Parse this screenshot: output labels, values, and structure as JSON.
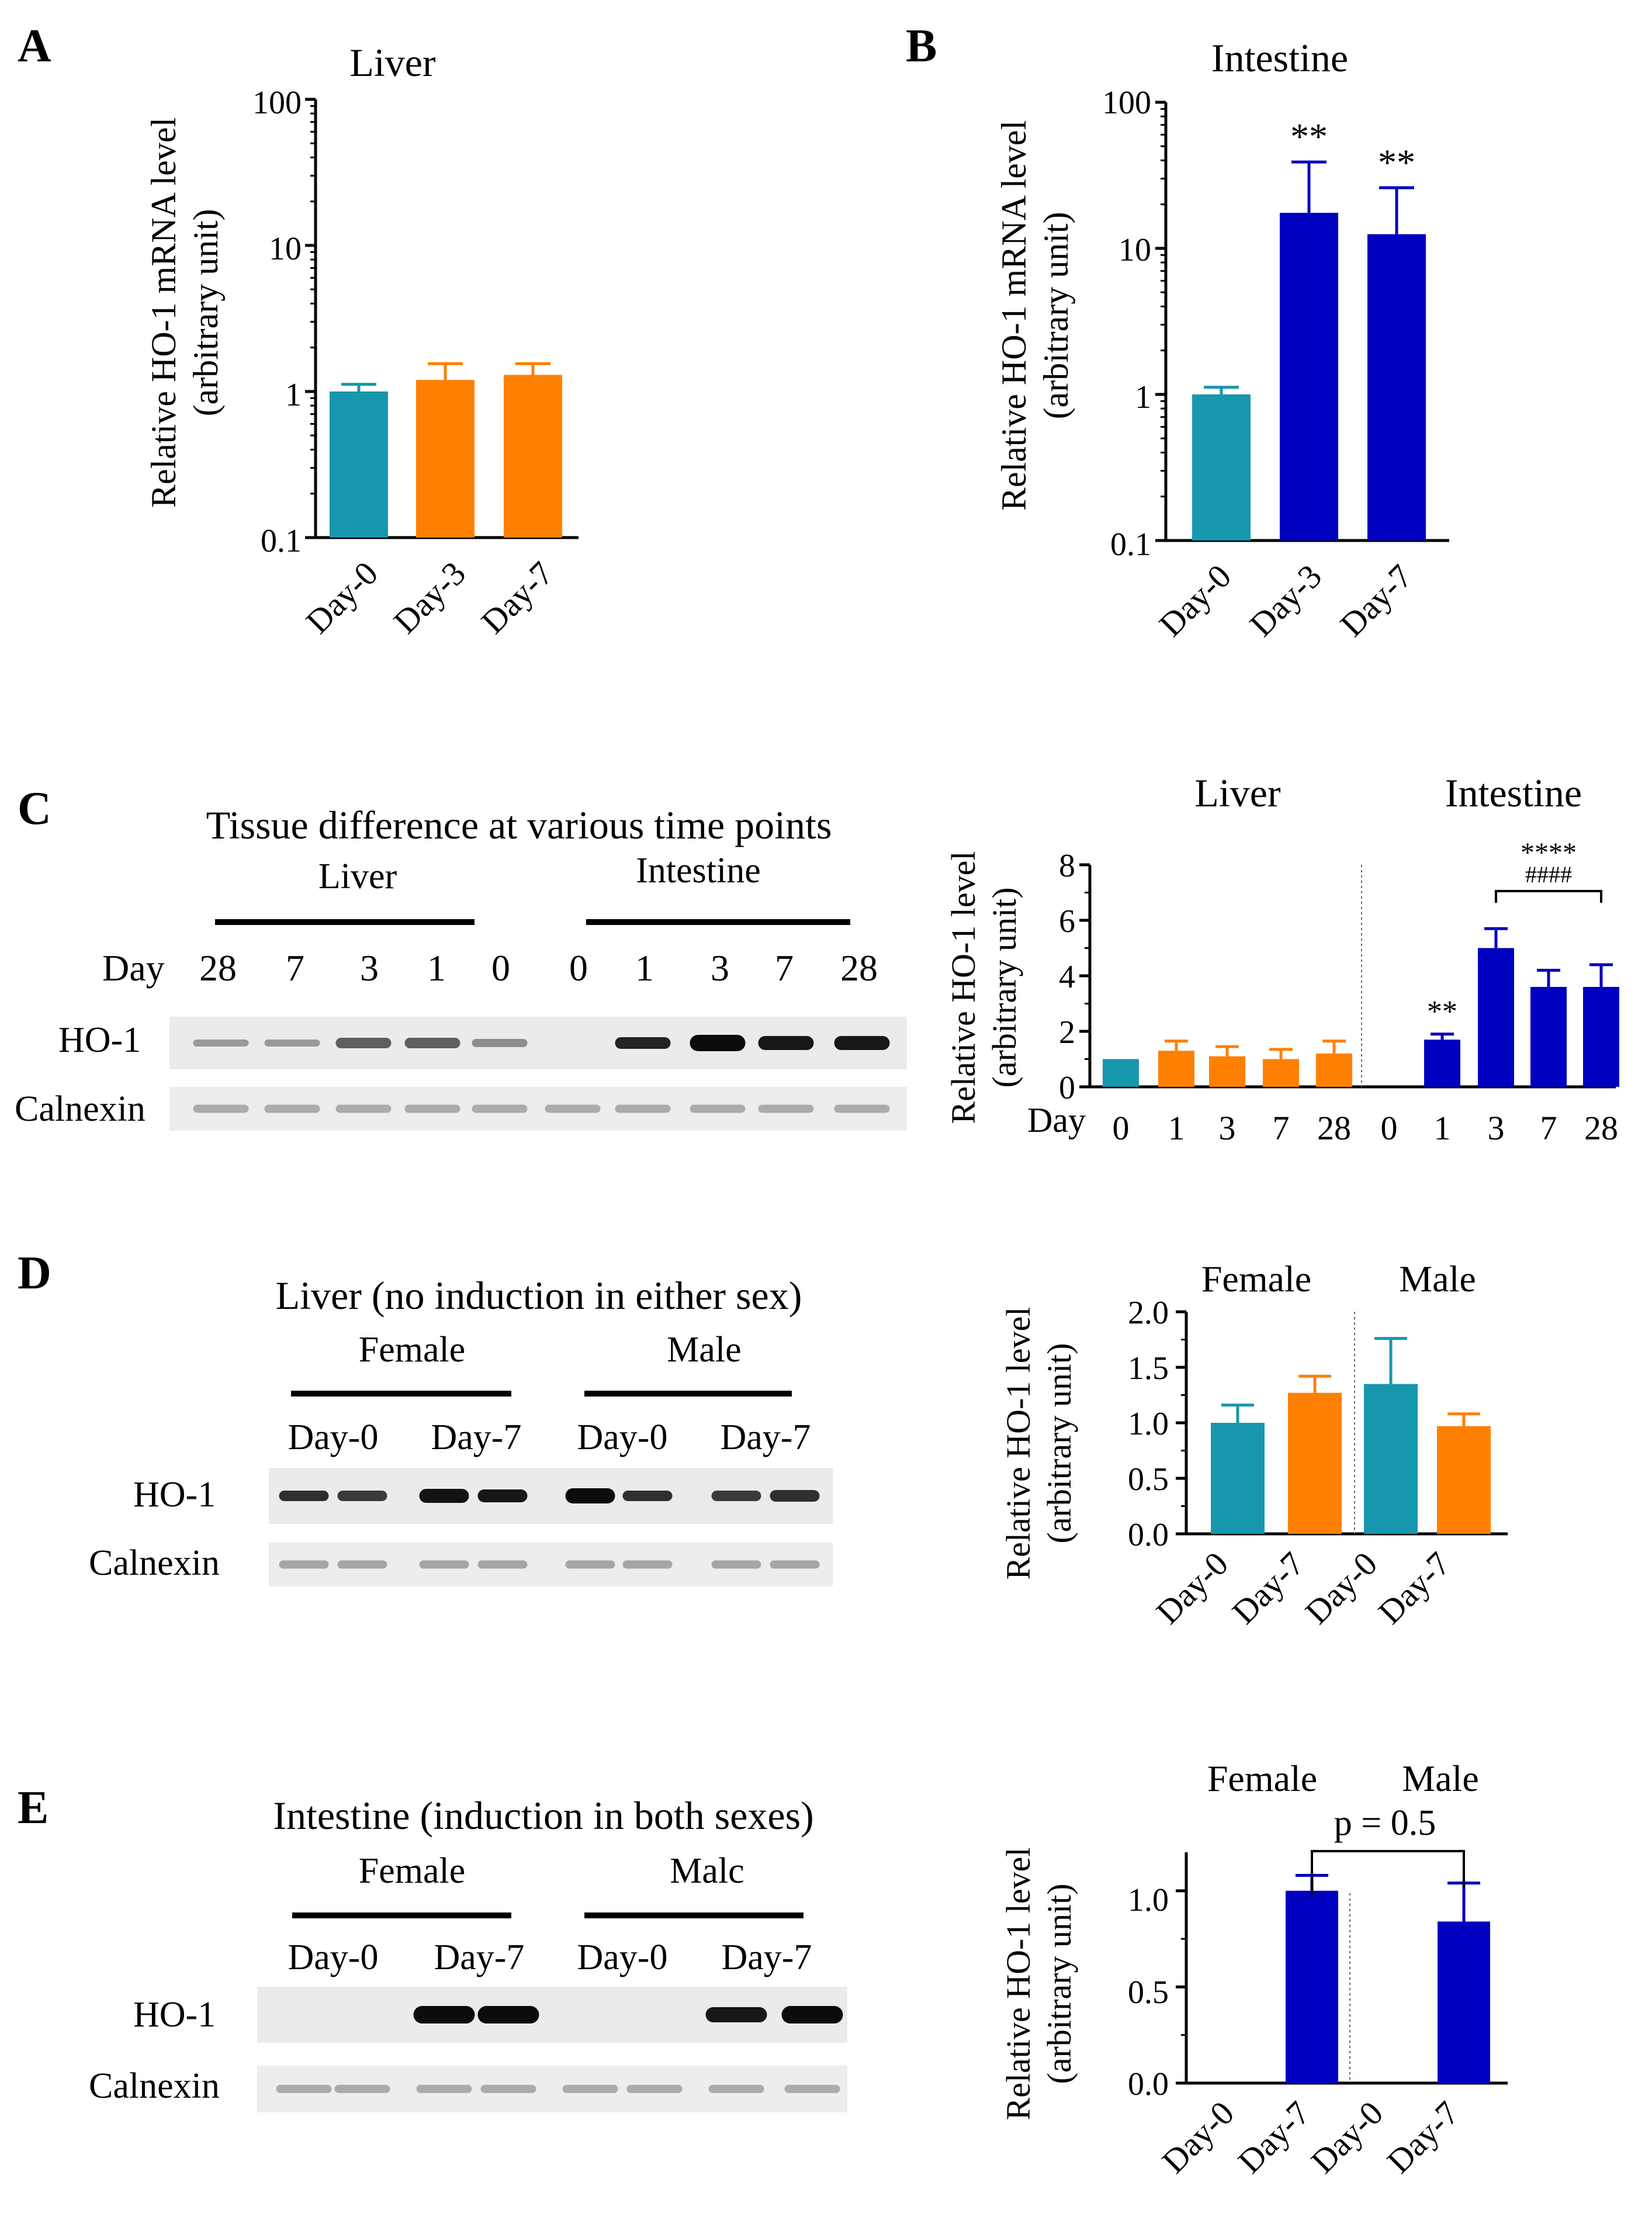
{
  "colors": {
    "teal": "#1797ad",
    "orange": "#ff8000",
    "blue": "#0000c0",
    "axis": "#000000"
  },
  "panels": {
    "A": {
      "letter": "A",
      "chart_data": {
        "type": "bar",
        "title": "Liver",
        "ylabel": "Relative HO-1 mRNA level (arbitrary unit)",
        "ylabel_lines": [
          "Relative HO-1 mRNA level",
          "(arbitrary unit)"
        ],
        "yscale": "log",
        "ylim": [
          0.1,
          100
        ],
        "yticks": [
          0.1,
          1,
          10,
          100
        ],
        "ytick_labels": [
          "0.1",
          "1",
          "10",
          "100"
        ],
        "categories": [
          "Day-0",
          "Day-3",
          "Day-7"
        ],
        "values": [
          1.0,
          1.2,
          1.3
        ],
        "error_upper": [
          1.12,
          1.55,
          1.55
        ],
        "bar_colors": [
          "teal",
          "orange",
          "orange"
        ],
        "annotations": [
          "",
          "",
          ""
        ]
      }
    },
    "B": {
      "letter": "B",
      "chart_data": {
        "type": "bar",
        "title": "Intestine",
        "ylabel": "Relative HO-1 mRNA level (arbitrary unit)",
        "ylabel_lines": [
          "Relative HO-1 mRNA level",
          "(arbitrary unit)"
        ],
        "yscale": "log",
        "ylim": [
          0.1,
          100
        ],
        "yticks": [
          0.1,
          1,
          10,
          100
        ],
        "ytick_labels": [
          "0.1",
          "1",
          "10",
          "100"
        ],
        "categories": [
          "Day-0",
          "Day-3",
          "Day-7"
        ],
        "values": [
          1.0,
          17.5,
          12.5
        ],
        "error_upper": [
          1.12,
          39,
          26
        ],
        "bar_colors": [
          "teal",
          "blue",
          "blue"
        ],
        "annotations": [
          "",
          "**",
          "**"
        ]
      }
    },
    "C": {
      "letter": "C",
      "blot": {
        "title": "Tissue difference at various time points",
        "groups": [
          "Liver",
          "Intestine"
        ],
        "day_label": "Day",
        "lanes": [
          "28",
          "7",
          "3",
          "1",
          "0",
          "0",
          "1",
          "3",
          "7",
          "28"
        ],
        "rows": [
          "HO-1",
          "Calnexin"
        ]
      },
      "chart_data": {
        "type": "bar",
        "group_labels": [
          "Liver",
          "Intestine"
        ],
        "ylabel": "Relative HO-1 level (arbitrary unit)",
        "ylabel_lines": [
          "Relative HO-1 level",
          "(arbitrary unit)"
        ],
        "ylim": [
          0,
          8
        ],
        "yticks": [
          0,
          2,
          4,
          6,
          8
        ],
        "ytick_labels": [
          "0",
          "2",
          "4",
          "6",
          "8"
        ],
        "x_prefix": "Day",
        "categories": [
          "0",
          "1",
          "3",
          "7",
          "28",
          "0",
          "1",
          "3",
          "7",
          "28"
        ],
        "values": [
          1.0,
          1.3,
          1.1,
          1.0,
          1.2,
          0,
          1.7,
          5.0,
          3.6,
          3.6
        ],
        "error_upper": [
          1.0,
          1.65,
          1.45,
          1.35,
          1.65,
          0,
          1.9,
          5.7,
          4.2,
          4.4
        ],
        "bar_colors": [
          "teal",
          "orange",
          "orange",
          "orange",
          "orange",
          "blue",
          "blue",
          "blue",
          "blue",
          "blue"
        ],
        "annotations": [
          "",
          "",
          "",
          "",
          "",
          "",
          "**",
          "",
          "",
          ""
        ],
        "bracket_text": [
          "****",
          "####"
        ]
      }
    },
    "D": {
      "letter": "D",
      "blot": {
        "title": "Liver (no induction in either sex)",
        "groups": [
          "Female",
          "Male"
        ],
        "lane_groups": [
          "Day-0",
          "Day-7",
          "Day-0",
          "Day-7"
        ],
        "rows": [
          "HO-1",
          "Calnexin"
        ]
      },
      "chart_data": {
        "type": "bar",
        "group_labels": [
          "Female",
          "Male"
        ],
        "ylabel": "Relative HO-1 level (arbitrary unit)",
        "ylabel_lines": [
          "Relative HO-1 level",
          "(arbitrary unit)"
        ],
        "ylim": [
          0,
          2.0
        ],
        "yticks": [
          0,
          0.5,
          1.0,
          1.5,
          2.0
        ],
        "ytick_labels": [
          "0.0",
          "0.5",
          "1.0",
          "1.5",
          "2.0"
        ],
        "categories": [
          "Day-0",
          "Day-7",
          "Day-0",
          "Day-7"
        ],
        "values": [
          1.0,
          1.27,
          1.35,
          0.97
        ],
        "error_upper": [
          1.16,
          1.42,
          1.76,
          1.08
        ],
        "bar_colors": [
          "teal",
          "orange",
          "teal",
          "orange"
        ]
      }
    },
    "E": {
      "letter": "E",
      "blot": {
        "title": "Intestine (induction in both sexes)",
        "groups": [
          "Female",
          "Malc"
        ],
        "lane_groups": [
          "Day-0",
          "Day-7",
          "Day-0",
          "Day-7"
        ],
        "rows": [
          "HO-1",
          "Calnexin"
        ]
      },
      "chart_data": {
        "type": "bar",
        "group_labels": [
          "Female",
          "Male"
        ],
        "ylabel": "Relative HO-1 level (arbitrary unit)",
        "ylabel_lines": [
          "Relative HO-1 level",
          "(arbitrary unit)"
        ],
        "ylim": [
          0,
          1.2
        ],
        "yticks": [
          0,
          0.5,
          1.0
        ],
        "ytick_labels": [
          "0.0",
          "0.5",
          "1.0"
        ],
        "categories": [
          "Day-0",
          "Day-7",
          "Day-0",
          "Day-7"
        ],
        "values": [
          0,
          1.0,
          0,
          0.84
        ],
        "error_upper": [
          0,
          1.08,
          0,
          1.04
        ],
        "bar_colors": [
          "blue",
          "blue",
          "blue",
          "blue"
        ],
        "bracket_text": "p = 0.5"
      }
    }
  }
}
